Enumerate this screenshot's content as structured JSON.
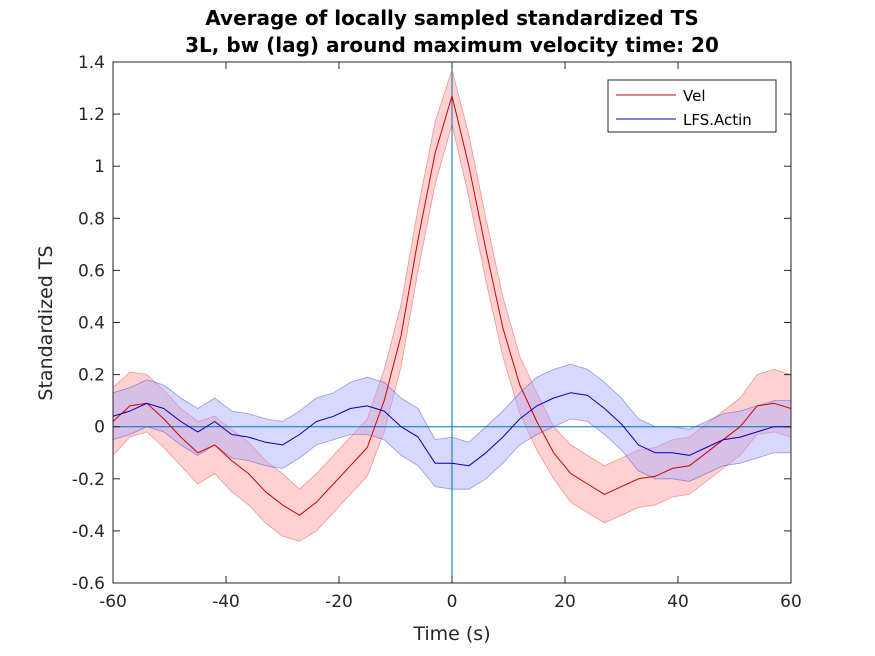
{
  "chart_data": {
    "type": "line",
    "title": [
      "Average of locally sampled standardized TS",
      "3L, bw (lag) around maximum velocity time: 20"
    ],
    "xlabel": "Time (s)",
    "ylabel": "Standardized TS",
    "xlim": [
      -60,
      60
    ],
    "ylim": [
      -0.6,
      1.4
    ],
    "xticks": [
      -60,
      -40,
      -20,
      0,
      20,
      40,
      60
    ],
    "yticks": [
      -0.6,
      -0.4,
      -0.2,
      0,
      0.2,
      0.4,
      0.6,
      0.8,
      1,
      1.2,
      1.4
    ],
    "xtick_labels": [
      "-60",
      "-40",
      "-20",
      "0",
      "20",
      "40",
      "60"
    ],
    "ytick_labels": [
      "-0.6",
      "-0.4",
      "-0.2",
      "0",
      "0.2",
      "0.4",
      "0.6",
      "0.8",
      "1",
      "1.2",
      "1.4"
    ],
    "grid": false,
    "legend_position": "top-right",
    "reference_lines": {
      "vertical_x": 0,
      "horizontal_y": 0,
      "color": "#0072BD"
    },
    "series": [
      {
        "name": "Vel",
        "color": "#d10000",
        "band_color": "#ff9a9a",
        "x": [
          -60,
          -57,
          -54,
          -51,
          -48,
          -45,
          -42,
          -39,
          -36,
          -33,
          -30,
          -27,
          -24,
          -21,
          -18,
          -15,
          -12,
          -9,
          -6,
          -3,
          0,
          3,
          6,
          9,
          12,
          15,
          18,
          21,
          24,
          27,
          30,
          33,
          36,
          39,
          42,
          45,
          48,
          51,
          54,
          57,
          60
        ],
        "y": [
          0.02,
          0.08,
          0.09,
          0.03,
          -0.04,
          -0.1,
          -0.07,
          -0.13,
          -0.18,
          -0.25,
          -0.3,
          -0.34,
          -0.29,
          -0.22,
          -0.15,
          -0.08,
          0.1,
          0.35,
          0.72,
          1.05,
          1.27,
          1.0,
          0.68,
          0.38,
          0.16,
          0.02,
          -0.1,
          -0.18,
          -0.22,
          -0.26,
          -0.23,
          -0.2,
          -0.19,
          -0.16,
          -0.15,
          -0.1,
          -0.05,
          0.0,
          0.08,
          0.09,
          0.07
        ],
        "lower": [
          -0.11,
          -0.04,
          -0.02,
          -0.08,
          -0.15,
          -0.22,
          -0.18,
          -0.25,
          -0.3,
          -0.37,
          -0.42,
          -0.44,
          -0.4,
          -0.33,
          -0.26,
          -0.19,
          -0.02,
          0.23,
          0.6,
          0.93,
          1.16,
          0.88,
          0.56,
          0.27,
          0.05,
          -0.09,
          -0.2,
          -0.29,
          -0.33,
          -0.37,
          -0.34,
          -0.31,
          -0.3,
          -0.27,
          -0.26,
          -0.21,
          -0.16,
          -0.11,
          -0.03,
          -0.02,
          -0.04
        ],
        "upper": [
          0.15,
          0.21,
          0.2,
          0.14,
          0.07,
          0.02,
          0.04,
          -0.01,
          -0.06,
          -0.13,
          -0.18,
          -0.24,
          -0.18,
          -0.11,
          -0.04,
          0.03,
          0.22,
          0.47,
          0.84,
          1.17,
          1.37,
          1.12,
          0.8,
          0.5,
          0.27,
          0.13,
          0.0,
          -0.07,
          -0.11,
          -0.15,
          -0.12,
          -0.09,
          -0.08,
          -0.05,
          -0.04,
          0.01,
          0.06,
          0.11,
          0.2,
          0.22,
          0.2
        ]
      },
      {
        "name": "LFS.Actin",
        "color": "#0000b0",
        "band_color": "#a8a8ff",
        "x": [
          -60,
          -57,
          -54,
          -51,
          -48,
          -45,
          -42,
          -39,
          -36,
          -33,
          -30,
          -27,
          -24,
          -21,
          -18,
          -15,
          -12,
          -9,
          -6,
          -3,
          0,
          3,
          6,
          9,
          12,
          15,
          18,
          21,
          24,
          27,
          30,
          33,
          36,
          39,
          42,
          45,
          48,
          51,
          54,
          57,
          60
        ],
        "y": [
          0.04,
          0.06,
          0.09,
          0.07,
          0.02,
          -0.02,
          0.02,
          -0.03,
          -0.04,
          -0.06,
          -0.07,
          -0.03,
          0.02,
          0.04,
          0.07,
          0.08,
          0.06,
          0.0,
          -0.04,
          -0.14,
          -0.14,
          -0.15,
          -0.1,
          -0.04,
          0.03,
          0.08,
          0.11,
          0.13,
          0.12,
          0.07,
          0.01,
          -0.07,
          -0.1,
          -0.1,
          -0.11,
          -0.08,
          -0.05,
          -0.04,
          -0.02,
          0.0,
          0.0
        ],
        "lower": [
          -0.05,
          -0.03,
          0.0,
          -0.02,
          -0.07,
          -0.11,
          -0.07,
          -0.12,
          -0.13,
          -0.15,
          -0.16,
          -0.12,
          -0.07,
          -0.05,
          -0.03,
          -0.03,
          -0.05,
          -0.11,
          -0.15,
          -0.23,
          -0.24,
          -0.24,
          -0.2,
          -0.14,
          -0.07,
          -0.03,
          0.0,
          0.03,
          0.02,
          -0.03,
          -0.09,
          -0.17,
          -0.2,
          -0.2,
          -0.21,
          -0.18,
          -0.15,
          -0.14,
          -0.12,
          -0.1,
          -0.1
        ],
        "upper": [
          0.13,
          0.15,
          0.18,
          0.16,
          0.11,
          0.07,
          0.11,
          0.06,
          0.05,
          0.03,
          0.02,
          0.06,
          0.11,
          0.13,
          0.17,
          0.19,
          0.17,
          0.11,
          0.07,
          -0.05,
          -0.04,
          -0.06,
          0.0,
          0.06,
          0.13,
          0.19,
          0.22,
          0.24,
          0.22,
          0.17,
          0.11,
          0.03,
          0.0,
          0.0,
          -0.01,
          0.02,
          0.05,
          0.06,
          0.08,
          0.1,
          0.1
        ]
      }
    ]
  }
}
